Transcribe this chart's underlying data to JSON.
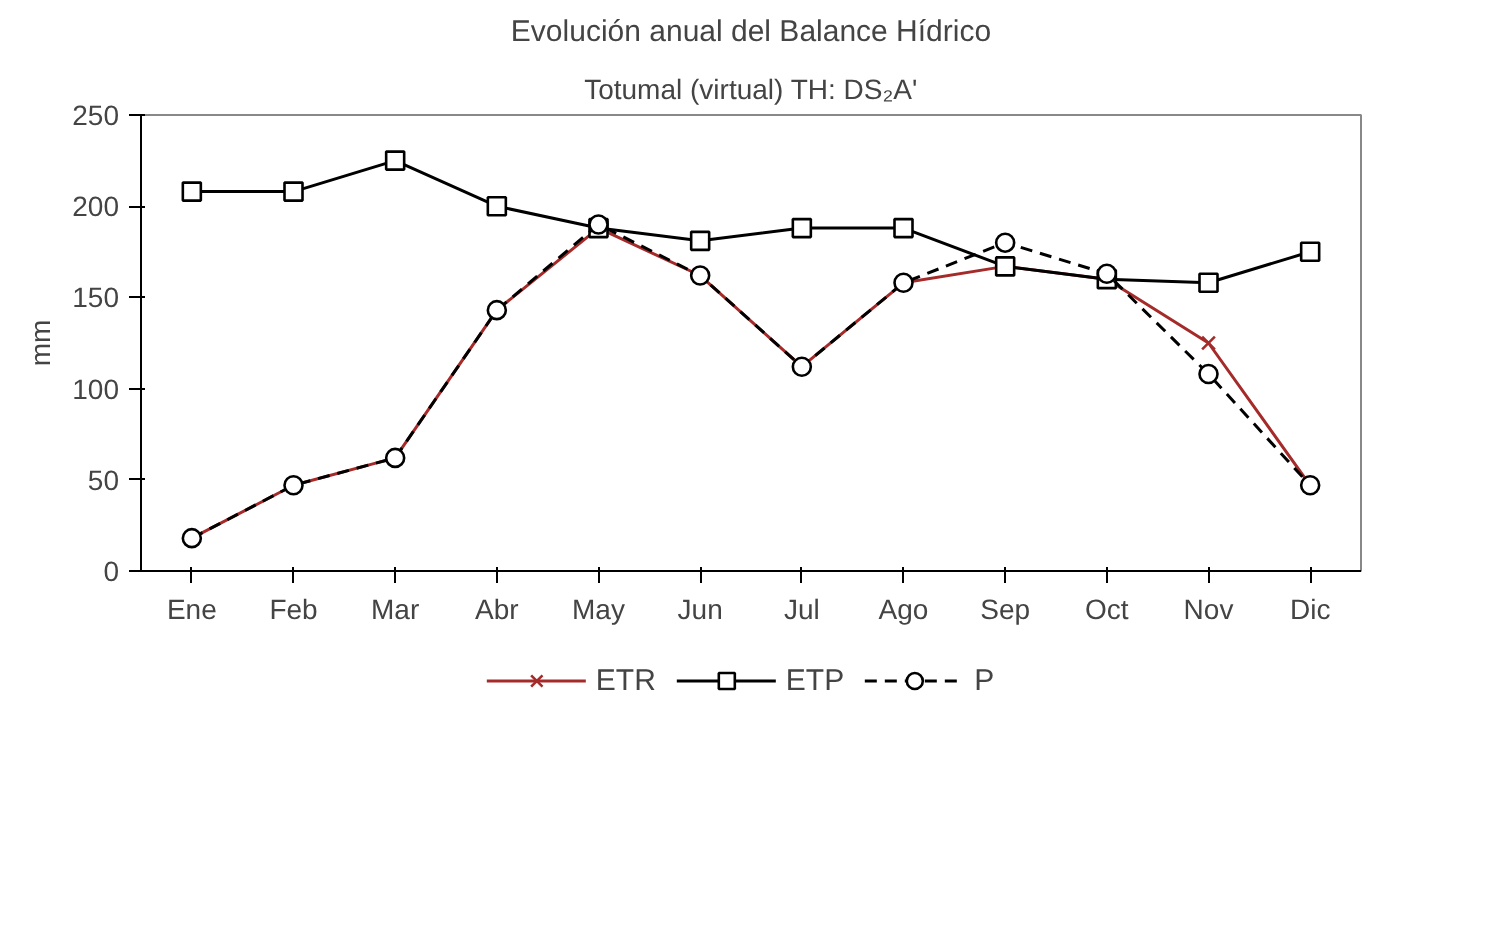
{
  "chart_data": {
    "type": "line",
    "title": "Evolución anual del Balance Hídrico",
    "subtitle": "Totumal (virtual) TH: DS₂A'",
    "ylabel": "mm",
    "categories": [
      "Ene",
      "Feb",
      "Mar",
      "Abr",
      "May",
      "Jun",
      "Jul",
      "Ago",
      "Sep",
      "Oct",
      "Nov",
      "Dic"
    ],
    "series": [
      {
        "name": "ETR",
        "color": "#a52a2a",
        "marker": "cross",
        "line_style": "solid",
        "values": [
          18,
          47,
          62,
          143,
          188,
          162,
          112,
          158,
          167,
          160,
          125,
          47
        ]
      },
      {
        "name": "ETP",
        "color": "#000000",
        "marker": "square",
        "line_style": "solid",
        "values": [
          208,
          208,
          225,
          200,
          188,
          181,
          188,
          188,
          167,
          160,
          158,
          175
        ]
      },
      {
        "name": "P",
        "color": "#000000",
        "marker": "circle",
        "line_style": "dashed",
        "values": [
          18,
          47,
          62,
          143,
          190,
          162,
          112,
          158,
          180,
          163,
          108,
          47
        ]
      }
    ],
    "ylim": [
      0,
      250
    ],
    "yticks": [
      0,
      50,
      100,
      150,
      200,
      250
    ],
    "grid": false,
    "legend": "bottom"
  }
}
